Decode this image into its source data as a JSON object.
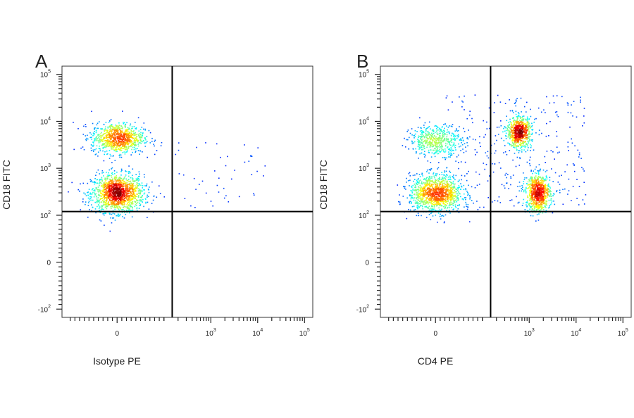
{
  "chart_data": [
    {
      "type": "scatter",
      "panel_label": "A",
      "xlabel": "Isotype PE",
      "ylabel": "CD18 FITC",
      "x_scale": "biexponential",
      "y_scale": "biexponential",
      "xlim": [
        -150,
        150000
      ],
      "ylim": [
        -150,
        150000
      ],
      "x_ticks": [
        {
          "value": 0,
          "base": "0",
          "exp": ""
        },
        {
          "value": 1000,
          "base": "10",
          "exp": "3"
        },
        {
          "value": 10000,
          "base": "10",
          "exp": "4"
        },
        {
          "value": 100000,
          "base": "10",
          "exp": "5"
        }
      ],
      "y_ticks": [
        {
          "value": 100000,
          "base": "10",
          "exp": "5"
        },
        {
          "value": 10000,
          "base": "10",
          "exp": "4"
        },
        {
          "value": 1000,
          "base": "10",
          "exp": "3"
        },
        {
          "value": 100,
          "base": "10",
          "exp": "2"
        },
        {
          "value": 0,
          "base": "0",
          "exp": ""
        },
        {
          "value": -100,
          "base": "-10",
          "exp": "2"
        }
      ],
      "gates": {
        "x": 150,
        "y": 120
      },
      "grid": false,
      "density_colormap": "jet",
      "populations": [
        {
          "name": "CD18 low",
          "x": 0,
          "y": 300,
          "n": 1400
        },
        {
          "name": "CD18 high",
          "x": 0,
          "y": 4500,
          "n": 900
        }
      ]
    },
    {
      "type": "scatter",
      "panel_label": "B",
      "xlabel": "CD4 PE",
      "ylabel": "CD18 FITC",
      "x_scale": "biexponential",
      "y_scale": "biexponential",
      "xlim": [
        -150,
        150000
      ],
      "ylim": [
        -150,
        150000
      ],
      "x_ticks": [
        {
          "value": 0,
          "base": "0",
          "exp": ""
        },
        {
          "value": 1000,
          "base": "10",
          "exp": "3"
        },
        {
          "value": 10000,
          "base": "10",
          "exp": "4"
        },
        {
          "value": 100000,
          "base": "10",
          "exp": "5"
        }
      ],
      "y_ticks": [
        {
          "value": 100000,
          "base": "10",
          "exp": "5"
        },
        {
          "value": 10000,
          "base": "10",
          "exp": "4"
        },
        {
          "value": 1000,
          "base": "10",
          "exp": "3"
        },
        {
          "value": 100,
          "base": "10",
          "exp": "2"
        },
        {
          "value": 0,
          "base": "0",
          "exp": ""
        },
        {
          "value": -100,
          "base": "-10",
          "exp": "2"
        }
      ],
      "gates": {
        "x": 150,
        "y": 120
      },
      "grid": false,
      "density_colormap": "jet",
      "populations": [
        {
          "name": "CD4- CD18 low",
          "x": 0,
          "y": 300,
          "n": 1200
        },
        {
          "name": "CD4- CD18 high",
          "x": 0,
          "y": 4000,
          "n": 500
        },
        {
          "name": "CD4+ CD18 high",
          "x": 600,
          "y": 6000,
          "n": 700
        },
        {
          "name": "CD4+ CD18 low",
          "x": 1500,
          "y": 300,
          "n": 800
        }
      ]
    }
  ]
}
